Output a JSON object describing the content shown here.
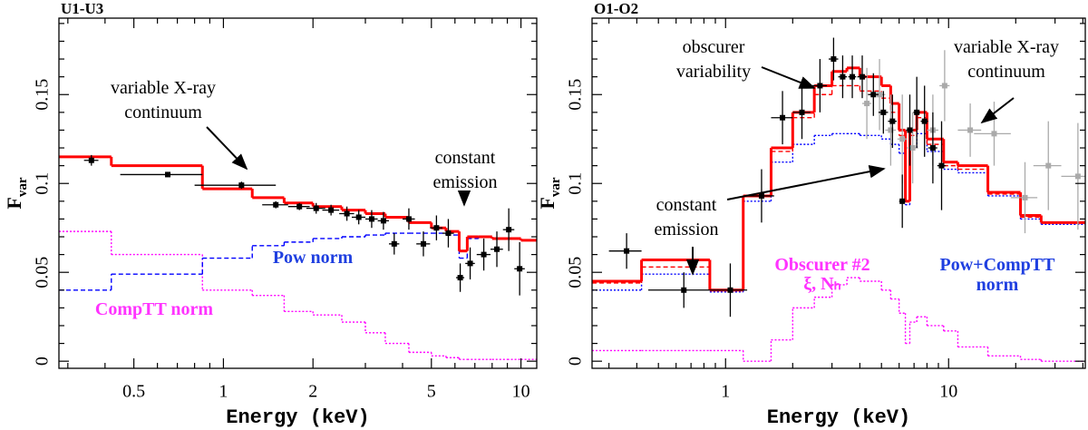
{
  "chart_data": [
    {
      "type": "scatter",
      "title": "U1-U3",
      "xlabel": "Energy (keV)",
      "ylabel": "F",
      "ylabel_subscript": "var",
      "xlog": true,
      "xlim": [
        0.28,
        11.3
      ],
      "ylim": [
        -0.004,
        0.193
      ],
      "xticks": [
        0.5,
        1,
        2,
        5,
        10
      ],
      "xminorticks": [
        0.3,
        0.4,
        0.6,
        0.7,
        0.8,
        0.9,
        3,
        4,
        6,
        7,
        8,
        9
      ],
      "yticks": [
        0,
        0.05,
        0.1,
        0.15
      ],
      "yminorticks": [
        0.01,
        0.02,
        0.03,
        0.04,
        0.06,
        0.07,
        0.08,
        0.09,
        0.11,
        0.12,
        0.13,
        0.14,
        0.16,
        0.17,
        0.18,
        0.19
      ],
      "points": [
        {
          "color": "#000000",
          "x": [
            0.36,
            0.65,
            1.15,
            1.5,
            1.8,
            2.05,
            2.3,
            2.6,
            2.85,
            3.15,
            3.45,
            3.75,
            4.2,
            4.7,
            5.2,
            5.7,
            6.25,
            6.75,
            7.5,
            8.3,
            9.1,
            9.9
          ],
          "xerr": [
            0.02,
            0.2,
            0.35,
            0.15,
            0.15,
            0.15,
            0.15,
            0.15,
            0.15,
            0.15,
            0.15,
            0.15,
            0.2,
            0.25,
            0.25,
            0.25,
            0.2,
            0.25,
            0.4,
            0.4,
            0.4,
            0.4
          ],
          "values": [
            0.113,
            0.105,
            0.099,
            0.088,
            0.087,
            0.086,
            0.085,
            0.083,
            0.081,
            0.08,
            0.079,
            0.066,
            0.08,
            0.066,
            0.075,
            0.072,
            0.047,
            0.055,
            0.06,
            0.063,
            0.074,
            0.052
          ],
          "yerr": [
            0.003,
            0.001,
            0.002,
            0.002,
            0.002,
            0.003,
            0.003,
            0.004,
            0.004,
            0.005,
            0.005,
            0.006,
            0.006,
            0.007,
            0.007,
            0.008,
            0.008,
            0.009,
            0.009,
            0.01,
            0.012,
            0.015
          ]
        }
      ],
      "models": [
        {
          "color": "#ff00ff",
          "style": "dotted",
          "bins": [
            0.28,
            0.42,
            0.85,
            1.25,
            1.6,
            2.0,
            2.5,
            3.0,
            3.5,
            4.2,
            5.0,
            5.6,
            6.2,
            6.6,
            7.2,
            8.0,
            9.0,
            10,
            11.3
          ],
          "values": [
            0.073,
            0.06,
            0.04,
            0.037,
            0.028,
            0.026,
            0.022,
            0.016,
            0.01,
            0.005,
            0.003,
            0.002,
            0.001,
            0.001,
            0.001,
            0.001,
            0.001,
            0.001
          ]
        },
        {
          "color": "#0000ff",
          "style": "dashed",
          "bins": [
            0.28,
            0.42,
            0.85,
            1.25,
            1.6,
            2.0,
            2.5,
            3.0,
            3.5,
            4.2,
            5.0,
            5.6,
            6.2,
            6.6,
            7.2,
            8.0,
            9.0,
            10,
            11.3
          ],
          "values": [
            0.04,
            0.049,
            0.058,
            0.065,
            0.067,
            0.069,
            0.07,
            0.071,
            0.072,
            0.072,
            0.072,
            0.071,
            0.058,
            0.069,
            0.07,
            0.069,
            0.069,
            0.068
          ]
        },
        {
          "color": "#ff0000",
          "style": "thick",
          "bins": [
            0.28,
            0.42,
            0.85,
            1.25,
            1.6,
            2.0,
            2.5,
            3.0,
            3.5,
            4.2,
            5.0,
            5.6,
            6.2,
            6.6,
            7.2,
            8.0,
            9.0,
            10,
            11.3
          ],
          "values": [
            0.115,
            0.11,
            0.097,
            0.092,
            0.089,
            0.087,
            0.085,
            0.083,
            0.081,
            0.078,
            0.075,
            0.073,
            0.062,
            0.07,
            0.07,
            0.069,
            0.069,
            0.068
          ]
        }
      ],
      "annotations": [
        {
          "lines": [
            "variable X-ray",
            "continuum"
          ],
          "color": "#000000",
          "weight": "normal"
        },
        {
          "lines": [
            "constant",
            "emission"
          ],
          "color": "#000000",
          "weight": "normal"
        },
        {
          "lines": [
            "Pow norm"
          ],
          "color": "#1f3fe0",
          "weight": "bold"
        },
        {
          "lines": [
            "CompTT norm"
          ],
          "color": "#ff33ff",
          "weight": "bold"
        }
      ]
    },
    {
      "type": "scatter",
      "title": "O1-O2",
      "xlabel": "Energy (keV)",
      "ylabel": "F",
      "ylabel_subscript": "var",
      "xlog": true,
      "xlim": [
        0.252,
        41
      ],
      "ylim": [
        -0.004,
        0.193
      ],
      "xticks": [
        1,
        10
      ],
      "xminorticks": [
        0.3,
        0.4,
        0.5,
        0.6,
        0.7,
        0.8,
        0.9,
        2,
        3,
        4,
        5,
        6,
        7,
        8,
        9,
        20,
        30,
        40
      ],
      "yticks": [
        0,
        0.05,
        0.1,
        0.15
      ],
      "yminorticks": [
        0.01,
        0.02,
        0.03,
        0.04,
        0.06,
        0.07,
        0.08,
        0.09,
        0.11,
        0.12,
        0.13,
        0.14,
        0.16,
        0.17,
        0.18,
        0.19
      ],
      "points": [
        {
          "color": "#aaaaaa",
          "x": [
            4.3,
            4.9,
            5.5,
            6.2,
            6.9,
            8.5,
            9.6,
            12.5,
            16,
            22,
            28,
            38
          ],
          "xerr": [
            0.2,
            0.3,
            0.3,
            0.3,
            0.4,
            0.5,
            0.5,
            1.5,
            3,
            3,
            4,
            6
          ],
          "values": [
            0.145,
            0.15,
            0.13,
            0.125,
            0.12,
            0.13,
            0.155,
            0.13,
            0.128,
            0.092,
            0.11,
            0.104
          ],
          "yerr": [
            0.02,
            0.02,
            0.02,
            0.025,
            0.02,
            0.02,
            0.02,
            0.015,
            0.018,
            0.02,
            0.025,
            0.03
          ]
        },
        {
          "color": "#000000",
          "x": [
            0.36,
            0.65,
            1.05,
            1.45,
            1.8,
            2.2,
            2.65,
            3.05,
            3.35,
            3.7,
            4.1,
            4.6,
            5.1,
            5.6,
            6.2,
            6.7,
            7.2,
            7.8,
            8.5,
            9.3
          ],
          "xerr": [
            0.06,
            0.2,
            0.2,
            0.2,
            0.2,
            0.2,
            0.2,
            0.15,
            0.15,
            0.15,
            0.2,
            0.25,
            0.25,
            0.25,
            0.2,
            0.25,
            0.25,
            0.3,
            0.4,
            0.4
          ],
          "values": [
            0.062,
            0.04,
            0.04,
            0.093,
            0.137,
            0.14,
            0.155,
            0.17,
            0.16,
            0.16,
            0.16,
            0.15,
            0.14,
            0.135,
            0.09,
            0.13,
            0.14,
            0.135,
            0.12,
            0.11
          ],
          "yerr": [
            0.01,
            0.01,
            0.015,
            0.015,
            0.015,
            0.015,
            0.015,
            0.012,
            0.012,
            0.012,
            0.012,
            0.012,
            0.012,
            0.015,
            0.015,
            0.02,
            0.02,
            0.02,
            0.02,
            0.025
          ]
        }
      ],
      "models": [
        {
          "color": "#ff00ff",
          "style": "dotted",
          "bins": [
            0.252,
            0.42,
            0.85,
            1.2,
            1.6,
            2.0,
            2.5,
            3.0,
            3.5,
            4.0,
            5.0,
            5.5,
            6.0,
            6.4,
            6.7,
            7.2,
            8.0,
            9.5,
            11,
            15,
            21,
            26,
            41
          ],
          "values": [
            0.006,
            0.006,
            0.006,
            0.0,
            0.012,
            0.03,
            0.036,
            0.043,
            0.047,
            0.045,
            0.04,
            0.035,
            0.027,
            0.01,
            0.022,
            0.025,
            0.02,
            0.017,
            0.008,
            0.003,
            0.001,
            0.0
          ]
        },
        {
          "color": "#0000ff",
          "style": "dotted",
          "bins": [
            0.252,
            0.42,
            0.85,
            1.2,
            1.6,
            2.0,
            2.5,
            3.0,
            3.5,
            4.0,
            5.0,
            5.5,
            6.0,
            6.4,
            6.7,
            7.2,
            8.0,
            9.5,
            11,
            15,
            21,
            26,
            41
          ],
          "values": [
            0.04,
            0.049,
            0.039,
            0.09,
            0.112,
            0.122,
            0.127,
            0.128,
            0.128,
            0.127,
            0.125,
            0.122,
            0.117,
            0.088,
            0.12,
            0.128,
            0.118,
            0.108,
            0.106,
            0.093,
            0.08,
            0.077
          ]
        },
        {
          "color": "#ff0000",
          "style": "dashed",
          "bins": [
            0.252,
            0.42,
            0.85,
            1.2,
            1.6,
            2.0,
            2.5,
            3.0,
            3.5,
            4.0,
            5.0,
            5.5,
            6.0,
            6.4,
            6.7,
            7.2,
            8.0,
            9.5,
            11,
            15,
            21,
            26,
            41
          ],
          "values": [
            0.044,
            0.053,
            0.04,
            0.093,
            0.118,
            0.137,
            0.15,
            0.155,
            0.155,
            0.152,
            0.148,
            0.14,
            0.127,
            0.09,
            0.127,
            0.137,
            0.122,
            0.11,
            0.108,
            0.094,
            0.081,
            0.078
          ]
        },
        {
          "color": "#ff0000",
          "style": "thick",
          "bins": [
            0.252,
            0.42,
            0.85,
            1.2,
            1.6,
            2.0,
            2.5,
            3.0,
            3.5,
            4.0,
            5.0,
            5.5,
            6.0,
            6.4,
            6.7,
            7.2,
            8.0,
            9.5,
            11,
            15,
            21,
            26,
            41
          ],
          "values": [
            0.045,
            0.057,
            0.04,
            0.093,
            0.12,
            0.14,
            0.155,
            0.163,
            0.165,
            0.16,
            0.155,
            0.145,
            0.13,
            0.09,
            0.13,
            0.14,
            0.125,
            0.112,
            0.11,
            0.095,
            0.082,
            0.078
          ]
        }
      ],
      "annotations": [
        {
          "lines": [
            "obscurer",
            "variability"
          ],
          "color": "#000000",
          "weight": "normal"
        },
        {
          "lines": [
            "variable X-ray",
            "continuum"
          ],
          "color": "#000000",
          "weight": "normal"
        },
        {
          "lines": [
            "constant",
            "emission"
          ],
          "color": "#000000",
          "weight": "normal"
        },
        {
          "lines": [
            "Obscurer #2",
            "ξ, Nₕ"
          ],
          "color": "#ff33ff",
          "weight": "bold"
        },
        {
          "lines": [
            "Pow+CompTT",
            "norm"
          ],
          "color": "#1f3fe0",
          "weight": "bold"
        }
      ]
    }
  ]
}
